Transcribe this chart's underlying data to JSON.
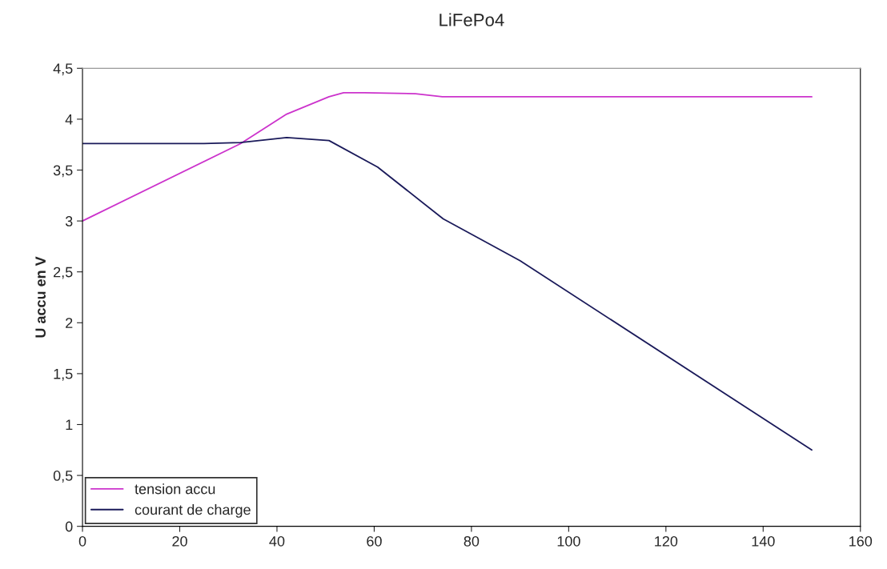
{
  "chart_data": {
    "type": "line",
    "title": "LiFePo4",
    "ylabel": "U accu en V",
    "xlim": [
      0,
      160
    ],
    "xticks": [
      0,
      20,
      40,
      60,
      80,
      100,
      120,
      140,
      160
    ],
    "ylim": [
      0,
      4.5
    ],
    "yticks": [
      {
        "value": 0,
        "label": "0"
      },
      {
        "value": 0.5,
        "label": "0,5"
      },
      {
        "value": 1,
        "label": "1"
      },
      {
        "value": 1.5,
        "label": "1,5"
      },
      {
        "value": 2,
        "label": "2"
      },
      {
        "value": 2.5,
        "label": "2,5"
      },
      {
        "value": 3,
        "label": "3"
      },
      {
        "value": 3.5,
        "label": "3,5"
      },
      {
        "value": 4,
        "label": "4"
      },
      {
        "value": 4.5,
        "label": "4,5"
      }
    ],
    "grid": false,
    "legend": "bottom left",
    "series": [
      {
        "name": "tension accu",
        "color": "#cc33cc",
        "x": [
          0,
          32.5,
          42,
          50.7,
          53.7,
          58,
          68.5,
          74,
          150
        ],
        "values": [
          3.0,
          3.76,
          4.05,
          4.22,
          4.26,
          4.26,
          4.25,
          4.22,
          4.22
        ]
      },
      {
        "name": "courant de charge",
        "color": "#1a1a5a",
        "x": [
          0,
          25,
          32.5,
          42,
          50.7,
          60.7,
          74.2,
          90,
          150
        ],
        "values": [
          3.76,
          3.76,
          3.77,
          3.82,
          3.79,
          3.53,
          3.02,
          2.61,
          0.75
        ]
      }
    ]
  }
}
